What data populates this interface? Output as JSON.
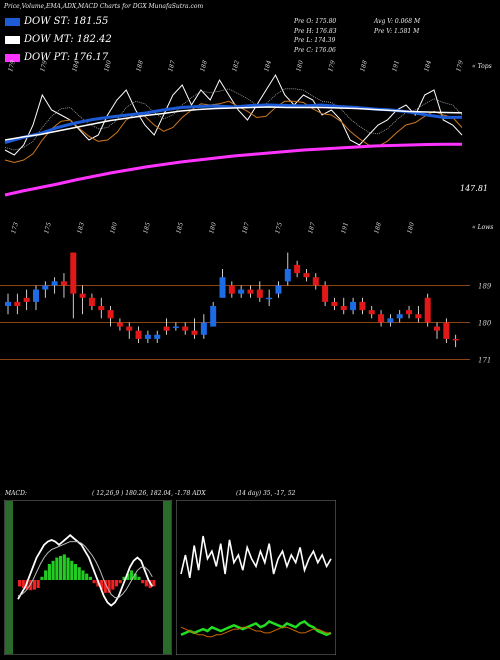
{
  "header": {
    "title": "Price,Volume,EMA,ADX,MACD Charts for DGX  MunafaSutra.com"
  },
  "legend": [
    {
      "label": "DOW ST: 181.55",
      "color": "#1e5bd6"
    },
    {
      "label": "DOW MT: 182.42",
      "color": "#ffffff"
    },
    {
      "label": "DOW PT: 176.17",
      "color": "#ff33ff"
    }
  ],
  "stats": {
    "col1": [
      "Pre   O: 175.80",
      "Pre   H: 176.83",
      "Pre   L: 174.39",
      "Pre   C: 176.06"
    ],
    "col2": [
      "Avg V: 0.068  M",
      "Pre   V: 1.581 M"
    ]
  },
  "top_axis_label": "« Tops",
  "lows_axis_label": "« Lows",
  "price_label": "147.81",
  "panel_labels": {
    "macd": "MACD:",
    "macd_values": "( 12,26,9 ) 180.26,  182.04,  -1.78 ADX",
    "adx_values": "(14  day) 35,  -17,  52"
  },
  "chart_data": [
    {
      "type": "line",
      "name": "EMA / Tops panel",
      "tops_labels": [
        "179",
        "179",
        "184",
        "180",
        "188",
        "187",
        "188",
        "182",
        "184",
        "180",
        "179",
        "188",
        "191",
        "184",
        "179"
      ],
      "series": [
        {
          "name": "DOW ST",
          "color": "#1e5bd6",
          "values": [
            176.5,
            177.5,
            178.3,
            179.5,
            180.4,
            181.1,
            181.6,
            182.0,
            182.4,
            183.0,
            183.5,
            183.7,
            183.8,
            183.6,
            183.9,
            184.0,
            183.9,
            183.8,
            184.0,
            183.7,
            183.5,
            183.2,
            183.0,
            182.6,
            182.0,
            181.5,
            181.55
          ]
        },
        {
          "name": "DOW MT",
          "color": "#ffffff",
          "values": [
            177.0,
            177.6,
            178.1,
            178.8,
            179.5,
            180.2,
            180.9,
            181.4,
            181.9,
            182.3,
            182.8,
            183.1,
            183.3,
            183.4,
            183.5,
            183.6,
            183.5,
            183.5,
            183.5,
            183.4,
            183.3,
            183.1,
            182.9,
            182.7,
            182.6,
            182.5,
            182.42
          ]
        },
        {
          "name": "DOW PT",
          "color": "#ff33ff",
          "values": [
            166.0,
            166.8,
            167.5,
            168.2,
            169.0,
            169.7,
            170.4,
            171.0,
            171.6,
            172.1,
            172.6,
            173.0,
            173.4,
            173.8,
            174.1,
            174.4,
            174.7,
            175.0,
            175.2,
            175.4,
            175.6,
            175.8,
            175.9,
            176.0,
            176.1,
            176.15,
            176.17
          ]
        }
      ]
    },
    {
      "type": "candlestick",
      "name": "Price panel",
      "lows_labels": [
        "173",
        "175",
        "183",
        "180",
        "185",
        "185",
        "180",
        "187",
        "175",
        "187",
        "191",
        "188",
        "180"
      ],
      "reference_lines": [
        189,
        180,
        171
      ],
      "candles": [
        {
          "o": 184,
          "c": 185,
          "h": 187,
          "l": 182,
          "up": true
        },
        {
          "o": 184,
          "c": 185,
          "h": 187,
          "l": 182,
          "up": false
        },
        {
          "o": 186,
          "c": 185,
          "h": 188,
          "l": 183,
          "up": false
        },
        {
          "o": 185,
          "c": 188,
          "h": 189,
          "l": 183,
          "up": true
        },
        {
          "o": 188,
          "c": 189,
          "h": 190,
          "l": 186,
          "up": true
        },
        {
          "o": 189,
          "c": 190,
          "h": 191,
          "l": 187,
          "up": true
        },
        {
          "o": 190,
          "c": 189,
          "h": 192,
          "l": 186,
          "up": false
        },
        {
          "o": 197,
          "c": 187,
          "h": 197,
          "l": 181,
          "up": false
        },
        {
          "o": 187,
          "c": 186,
          "h": 189,
          "l": 182,
          "up": false
        },
        {
          "o": 186,
          "c": 184,
          "h": 187,
          "l": 183,
          "up": false
        },
        {
          "o": 184,
          "c": 183,
          "h": 186,
          "l": 181,
          "up": false
        },
        {
          "o": 183,
          "c": 181,
          "h": 184,
          "l": 179,
          "up": false
        },
        {
          "o": 180,
          "c": 179,
          "h": 181,
          "l": 178,
          "up": false
        },
        {
          "o": 179,
          "c": 178,
          "h": 180,
          "l": 176,
          "up": false
        },
        {
          "o": 178,
          "c": 176,
          "h": 179,
          "l": 175,
          "up": false
        },
        {
          "o": 176,
          "c": 177,
          "h": 178,
          "l": 175,
          "up": true
        },
        {
          "o": 176,
          "c": 177,
          "h": 178,
          "l": 175,
          "up": true
        },
        {
          "o": 178,
          "c": 179,
          "h": 181,
          "l": 177,
          "up": false
        },
        {
          "o": 179,
          "c": 179,
          "h": 180,
          "l": 178,
          "up": true
        },
        {
          "o": 179,
          "c": 178,
          "h": 180,
          "l": 177,
          "up": false
        },
        {
          "o": 178,
          "c": 177,
          "h": 181,
          "l": 176,
          "up": false
        },
        {
          "o": 177,
          "c": 180,
          "h": 182,
          "l": 176,
          "up": true
        },
        {
          "o": 179,
          "c": 184,
          "h": 185,
          "l": 179,
          "up": true
        },
        {
          "o": 186,
          "c": 191,
          "h": 193,
          "l": 186,
          "up": true
        },
        {
          "o": 189,
          "c": 187,
          "h": 190,
          "l": 186,
          "up": false
        },
        {
          "o": 187,
          "c": 188,
          "h": 189,
          "l": 186,
          "up": true
        },
        {
          "o": 188,
          "c": 187,
          "h": 189,
          "l": 186,
          "up": false
        },
        {
          "o": 188,
          "c": 186,
          "h": 190,
          "l": 185,
          "up": false
        },
        {
          "o": 186,
          "c": 186,
          "h": 188,
          "l": 184,
          "up": true
        },
        {
          "o": 187,
          "c": 189,
          "h": 190,
          "l": 186,
          "up": true
        },
        {
          "o": 190,
          "c": 193,
          "h": 197,
          "l": 189,
          "up": true
        },
        {
          "o": 194,
          "c": 192,
          "h": 195,
          "l": 191,
          "up": false
        },
        {
          "o": 192,
          "c": 191,
          "h": 193,
          "l": 190,
          "up": false
        },
        {
          "o": 191,
          "c": 189,
          "h": 192,
          "l": 188,
          "up": false
        },
        {
          "o": 189,
          "c": 185,
          "h": 190,
          "l": 184,
          "up": false
        },
        {
          "o": 185,
          "c": 184,
          "h": 186,
          "l": 183,
          "up": false
        },
        {
          "o": 184,
          "c": 183,
          "h": 186,
          "l": 182,
          "up": false
        },
        {
          "o": 183,
          "c": 185,
          "h": 186,
          "l": 182,
          "up": true
        },
        {
          "o": 185,
          "c": 183,
          "h": 186,
          "l": 182,
          "up": false
        },
        {
          "o": 183,
          "c": 182,
          "h": 184,
          "l": 181,
          "up": false
        },
        {
          "o": 182,
          "c": 180,
          "h": 183,
          "l": 179,
          "up": false
        },
        {
          "o": 180,
          "c": 181,
          "h": 182,
          "l": 179,
          "up": true
        },
        {
          "o": 181,
          "c": 182,
          "h": 183,
          "l": 180,
          "up": true
        },
        {
          "o": 182,
          "c": 183,
          "h": 184,
          "l": 181,
          "up": false
        },
        {
          "o": 181,
          "c": 182,
          "h": 184,
          "l": 180,
          "up": false
        },
        {
          "o": 186,
          "c": 180,
          "h": 187,
          "l": 179,
          "up": false
        },
        {
          "o": 179,
          "c": 178,
          "h": 180,
          "l": 176,
          "up": false
        },
        {
          "o": 180,
          "c": 176,
          "h": 181,
          "l": 175,
          "up": false
        },
        {
          "o": 176,
          "c": 176,
          "h": 177,
          "l": 174,
          "up": false
        }
      ]
    },
    {
      "type": "bar",
      "name": "MACD panel",
      "histogram": [
        -2,
        -2.5,
        -3,
        -3.2,
        -3,
        -2.5,
        1,
        3,
        5,
        6,
        7,
        7.5,
        8,
        7,
        6,
        5,
        4,
        3,
        2,
        1,
        -1,
        -2,
        -3,
        -4,
        -4,
        -3,
        -2,
        -1,
        1,
        2,
        3,
        2,
        1,
        -1,
        -2,
        -2.5,
        -2
      ],
      "series": [
        {
          "name": "macd",
          "values": [
            -6,
            -4,
            -2,
            1,
            4,
            7,
            9,
            11,
            12,
            12.5,
            12,
            11,
            12,
            13,
            14,
            13,
            12,
            11,
            9,
            7,
            4,
            1,
            -2,
            -5,
            -7,
            -8,
            -7,
            -5,
            -2,
            1,
            4,
            6,
            7,
            6,
            3,
            0,
            -2
          ]
        },
        {
          "name": "signal",
          "values": [
            -5,
            -4.5,
            -3.5,
            -2,
            0,
            2.5,
            5,
            7,
            8.5,
            9.5,
            10,
            10.5,
            11,
            11.5,
            12,
            12,
            12,
            11.5,
            10.5,
            9,
            7.5,
            5.5,
            3,
            0,
            -2.5,
            -4.5,
            -5.5,
            -5.5,
            -4.5,
            -3,
            -1,
            1,
            3,
            4,
            4,
            3,
            1
          ]
        }
      ]
    },
    {
      "type": "line",
      "name": "ADX panel",
      "series": [
        {
          "name": "+DI",
          "color": "#ffffff",
          "values": [
            40,
            50,
            38,
            55,
            42,
            60,
            48,
            52,
            44,
            56,
            40,
            58,
            46,
            50,
            42,
            54,
            48,
            44,
            52,
            46,
            56,
            40,
            48,
            52,
            44,
            50,
            46,
            54,
            42,
            48,
            52,
            46,
            50,
            44,
            48
          ]
        },
        {
          "name": "-DI",
          "color": "#22dd22",
          "values": [
            8,
            9,
            10,
            9,
            10,
            11,
            10,
            12,
            11,
            10,
            11,
            12,
            13,
            12,
            11,
            12,
            13,
            14,
            12,
            13,
            15,
            14,
            13,
            12,
            14,
            13,
            12,
            14,
            15,
            13,
            12,
            10,
            9,
            8,
            9
          ]
        },
        {
          "name": "ADX",
          "color": "#cc6600",
          "values": [
            12,
            11,
            10,
            9,
            8,
            8,
            7,
            7,
            8,
            8,
            9,
            10,
            11,
            11,
            12,
            12,
            11,
            10,
            10,
            9,
            9,
            10,
            11,
            12,
            12,
            11,
            10,
            9,
            9,
            10,
            11,
            11,
            10,
            9,
            9
          ]
        }
      ]
    }
  ]
}
